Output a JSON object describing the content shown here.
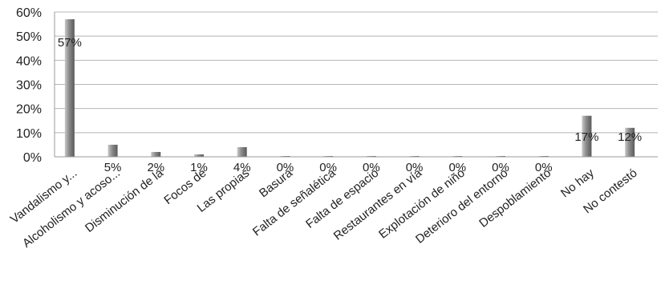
{
  "chart_data": {
    "type": "bar",
    "title": "",
    "xlabel": "",
    "ylabel": "",
    "ylim": [
      0,
      60
    ],
    "yticks": [
      "0%",
      "10%",
      "20%",
      "30%",
      "40%",
      "50%",
      "60%"
    ],
    "grid": true,
    "legend": "none",
    "bar_color": "#8a8a8a",
    "categories": [
      "Vandalismo y...",
      "Alcoholismo y acoso...",
      "Disminución de la",
      "Focos de",
      "Las propias",
      "Basura",
      "Falta de señalética",
      "Falta de espacio",
      "Restaurantes en vía",
      "Explotación de niño",
      "Deterioro del entorno",
      "Despoblamiento",
      "No hay",
      "No contestó"
    ],
    "values": [
      57,
      5,
      2,
      1,
      4,
      0,
      0,
      0,
      0,
      0,
      0,
      0,
      17,
      12
    ],
    "data_labels": [
      "57%",
      "5%",
      "2%",
      "1%",
      "4%",
      "0%",
      "0%",
      "0%",
      "0%",
      "0%",
      "0%",
      "0%",
      "17%",
      "12%"
    ]
  }
}
